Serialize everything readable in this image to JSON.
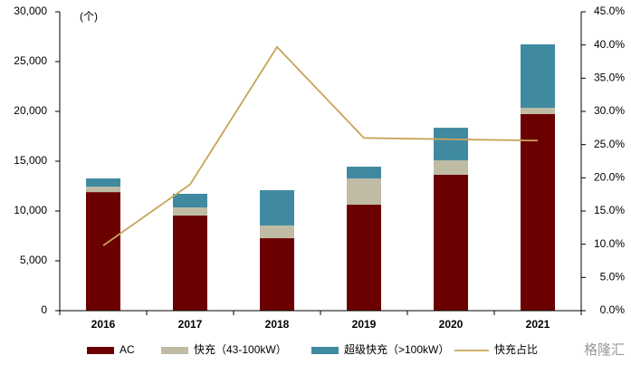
{
  "chart_data": {
    "type": "bar-line",
    "annotation": "(个)",
    "watermark": "格隆汇",
    "categories": [
      "2016",
      "2017",
      "2018",
      "2019",
      "2020",
      "2021"
    ],
    "series": [
      {
        "name": "AC",
        "color": "#6b0000",
        "type": "bar",
        "values": [
          11900,
          9550,
          7270,
          10640,
          13640,
          19730
        ]
      },
      {
        "name": "快充（43-100kW）",
        "color": "#bfbba4",
        "type": "bar",
        "values": [
          550,
          810,
          1280,
          2630,
          1450,
          630
        ]
      },
      {
        "name": "超级快充（>100kW）",
        "color": "#3f8aa0",
        "type": "bar",
        "values": [
          820,
          1370,
          3540,
          1180,
          3270,
          6370
        ]
      },
      {
        "name": "快充占比",
        "color": "#c8a45a",
        "type": "line",
        "axis": "y2",
        "values": [
          9.8,
          19.0,
          39.7,
          26.0,
          25.8,
          25.6
        ]
      }
    ],
    "ylim": [
      0,
      30000
    ],
    "yticks": [
      0,
      {
        "value": 5000,
        "label": "5,000"
      },
      {
        "value": 10000,
        "label": "10,000"
      },
      {
        "value": 15000,
        "label": "15,000"
      },
      {
        "value": 20000,
        "label": "20,000"
      },
      {
        "value": 25000,
        "label": "25,000"
      },
      {
        "value": 30000,
        "label": "30,000"
      }
    ],
    "y2lim": [
      0,
      45
    ],
    "y2ticks": [
      {
        "value": 0,
        "label": "0.0%"
      },
      {
        "value": 5,
        "label": "5.0%"
      },
      {
        "value": 10,
        "label": "10.0%"
      },
      {
        "value": 15,
        "label": "15.0%"
      },
      {
        "value": 20,
        "label": "20.0%"
      },
      {
        "value": 25,
        "label": "25.0%"
      },
      {
        "value": 30,
        "label": "30.0%"
      },
      {
        "value": 35,
        "label": "35.0%"
      },
      {
        "value": 40,
        "label": "40.0%"
      },
      {
        "value": 45,
        "label": "45.0%"
      }
    ],
    "grid": false
  }
}
